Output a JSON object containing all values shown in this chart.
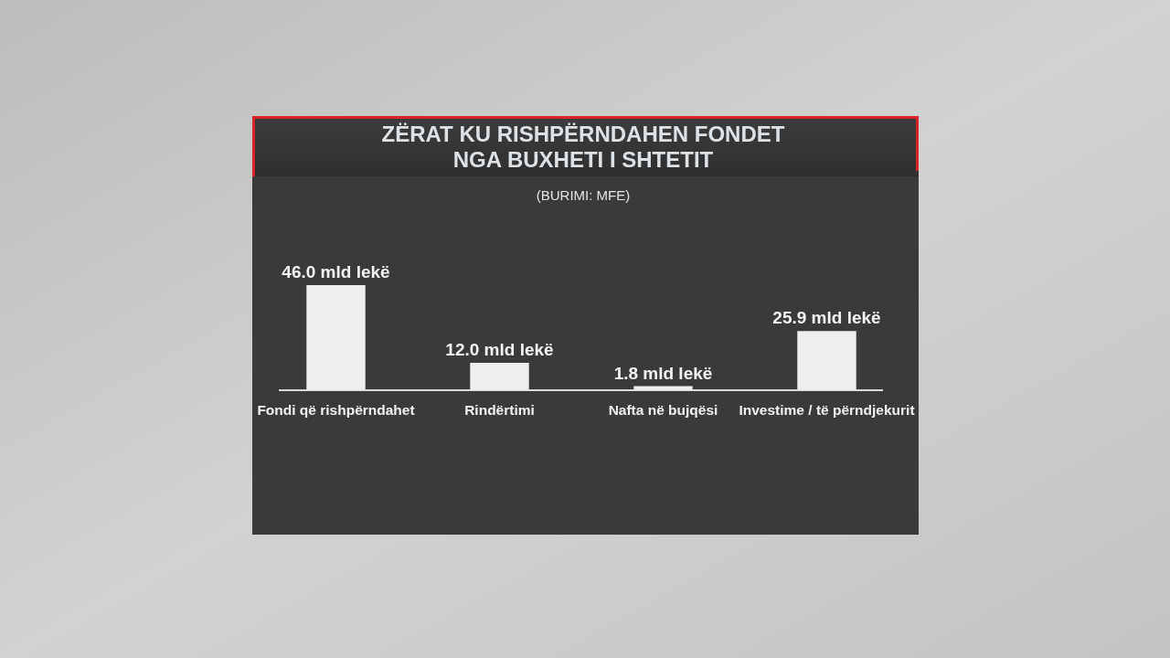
{
  "chart_data": {
    "type": "bar",
    "title": "ZËRAT KU RISHPËRNDAHEN FONDET\nNGA BUXHETI I SHTETIT",
    "subtitle": "(BURIMI: MFE)",
    "categories": [
      "Fondi që rishpërndahet",
      "Rindërtimi",
      "Nafta në bujqësi",
      "Investime / të përndjekurit"
    ],
    "values": [
      46.0,
      12.0,
      1.8,
      25.9
    ],
    "color": "#eeeeee",
    "value_labels": [
      "46.0 mld lekë",
      "12.0 mld lekë",
      "1.8 mld lekë",
      "25.9 mld lekë"
    ]
  }
}
